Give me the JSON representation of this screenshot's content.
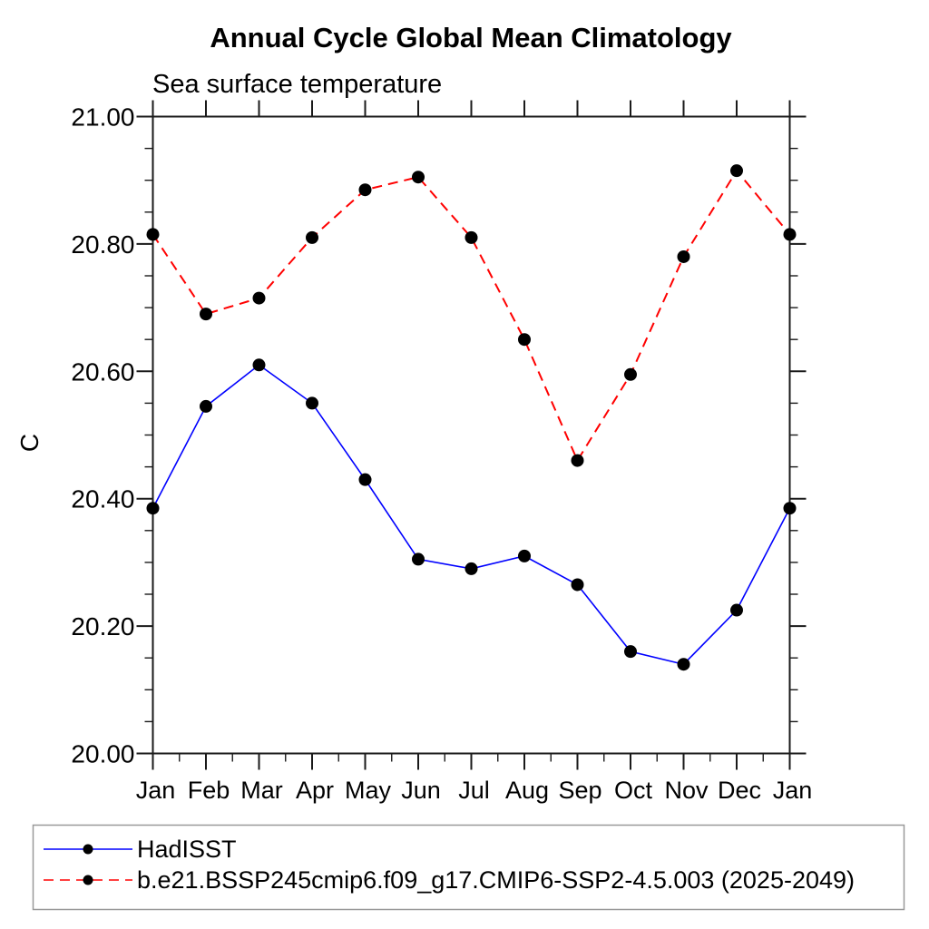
{
  "title": "Annual Cycle Global Mean Climatology",
  "subtitle": "Sea surface temperature",
  "ylabel": "C",
  "colors": {
    "hadisst_line": "#0000ff",
    "model_line": "#ff0000",
    "marker": "#000000",
    "axis": "#1a1a1a",
    "legend_border": "#999999"
  },
  "chart_data": {
    "type": "line",
    "categories": [
      "Jan",
      "Feb",
      "Mar",
      "Apr",
      "May",
      "Jun",
      "Jul",
      "Aug",
      "Sep",
      "Oct",
      "Nov",
      "Dec",
      "Jan"
    ],
    "series": [
      {
        "name": "HadISST",
        "color": "#0000ff",
        "line_style": "solid",
        "marker": "black-circle",
        "values": [
          20.385,
          20.545,
          20.61,
          20.55,
          20.43,
          20.305,
          20.29,
          20.31,
          20.265,
          20.16,
          20.14,
          20.225,
          20.385
        ]
      },
      {
        "name": "b.e21.BSSP245cmip6.f09_g17.CMIP6-SSP2-4.5.003 (2025-2049)",
        "color": "#ff0000",
        "line_style": "dashed",
        "marker": "black-circle",
        "values": [
          20.815,
          20.69,
          20.715,
          20.81,
          20.885,
          20.905,
          20.81,
          20.65,
          20.46,
          20.595,
          20.78,
          20.915,
          20.815
        ]
      }
    ],
    "ylim": [
      20.0,
      21.0
    ],
    "ytick_major_step": 0.2,
    "ytick_minor_step": 0.05,
    "ytick_labels": [
      "21.00",
      "20.80",
      "20.60",
      "20.40",
      "20.20",
      "20.00"
    ],
    "xtick_minor": "half-month",
    "grid": false,
    "legend_position": "bottom-left-box"
  }
}
